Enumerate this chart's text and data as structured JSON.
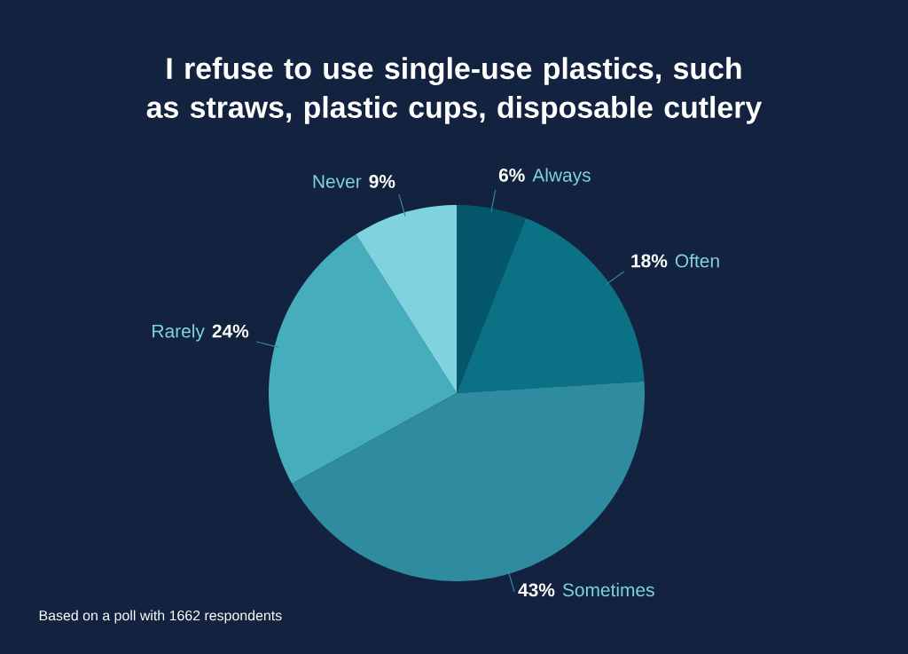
{
  "chart_data": {
    "type": "pie",
    "title": "I refuse to use single-use plastics, such as straws, plastic cups, disposable cutlery",
    "categories": [
      "Always",
      "Often",
      "Sometimes",
      "Rarely",
      "Never"
    ],
    "values": [
      6,
      18,
      43,
      24,
      9
    ],
    "colors": [
      "#04566b",
      "#0b7285",
      "#2e8ba0",
      "#45adbb",
      "#7fd3df"
    ],
    "value_labels": [
      "6%",
      "18%",
      "43%",
      "24%",
      "9%"
    ],
    "annotations": [
      "Based on a poll with 1662 respondents"
    ]
  }
}
